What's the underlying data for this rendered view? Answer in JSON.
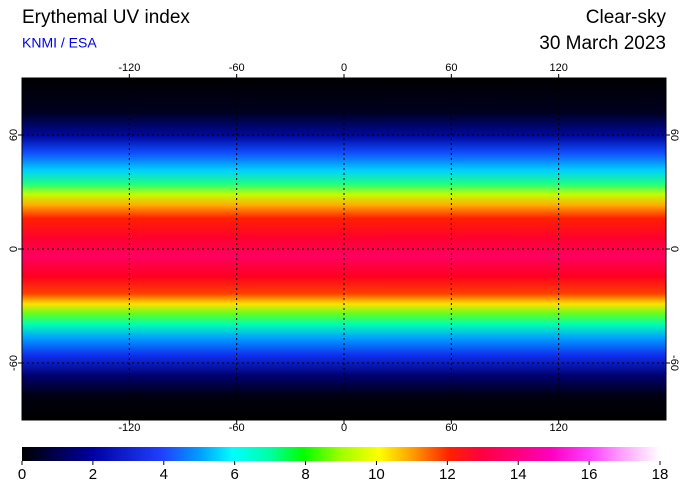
{
  "chart_data": {
    "type": "map",
    "title": "Erythemal UV index",
    "subtitle": "KNMI / ESA",
    "condition": "Clear-sky",
    "date": "30 March 2023",
    "xlim": [
      -180,
      180
    ],
    "xticks": [
      -120,
      -60,
      0,
      60,
      120
    ],
    "ylim": [
      -90,
      90
    ],
    "yticks": [
      60,
      0,
      -60
    ],
    "grid": true,
    "colorbar": {
      "lim": [
        0,
        18
      ],
      "ticks": [
        0,
        2,
        4,
        6,
        8,
        10,
        12,
        14,
        16,
        18
      ]
    }
  }
}
